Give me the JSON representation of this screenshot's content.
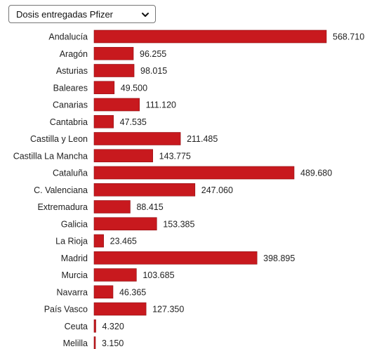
{
  "selector": {
    "selected": "Dosis entregadas Pfizer"
  },
  "colors": {
    "bar": "#c8191e",
    "bar_stroke": "#8e0f13"
  },
  "chart_data": {
    "type": "bar",
    "orientation": "horizontal",
    "title": "",
    "xlabel": "",
    "ylabel": "",
    "categories": [
      "Andalucía",
      "Aragón",
      "Asturias",
      "Baleares",
      "Canarias",
      "Cantabria",
      "Castilla y Leon",
      "Castilla La Mancha",
      "Cataluña",
      "C. Valenciana",
      "Extremadura",
      "Galicia",
      "La Rioja",
      "Madrid",
      "Murcia",
      "Navarra",
      "País Vasco",
      "Ceuta",
      "Melilla"
    ],
    "values": [
      568710,
      96255,
      98015,
      49500,
      111120,
      47535,
      211485,
      143775,
      489680,
      247060,
      88415,
      153385,
      23465,
      398895,
      103685,
      46365,
      127350,
      4320,
      3150
    ],
    "value_labels": [
      "568.710",
      "96.255",
      "98.015",
      "49.500",
      "111.120",
      "47.535",
      "211.485",
      "143.775",
      "489.680",
      "247.060",
      "88.415",
      "153.385",
      "23.465",
      "398.895",
      "103.685",
      "46.365",
      "127.350",
      "4.320",
      "3.150"
    ],
    "xlim": [
      0,
      568710
    ],
    "grid": false,
    "legend": "none"
  }
}
